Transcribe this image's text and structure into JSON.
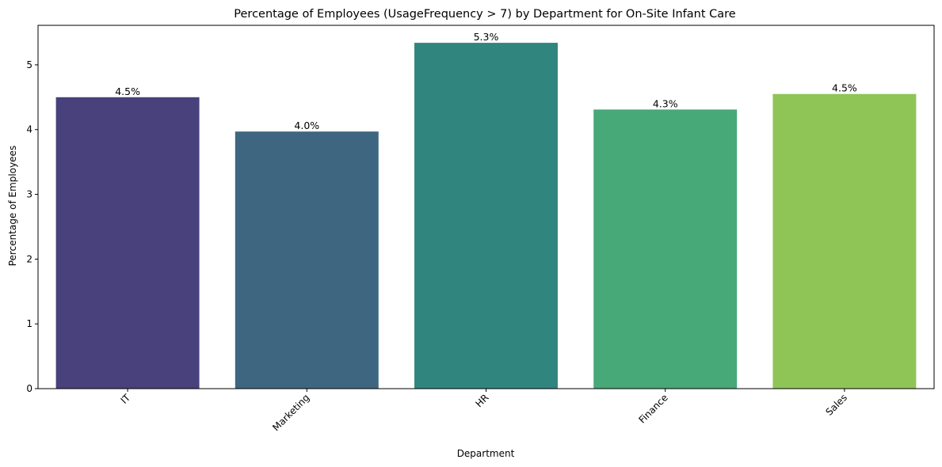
{
  "chart_data": {
    "type": "bar",
    "title": "Percentage of Employees (UsageFrequency > 7) by Department for On-Site Infant Care",
    "xlabel": "Department",
    "ylabel": "Percentage of Employees",
    "categories": [
      "IT",
      "Marketing",
      "HR",
      "Finance",
      "Sales"
    ],
    "values": [
      4.5,
      3.97,
      5.34,
      4.31,
      4.55
    ],
    "data_labels": [
      "4.5%",
      "4.0%",
      "5.3%",
      "4.3%",
      "4.5%"
    ],
    "colors": [
      "#48417b",
      "#3e6681",
      "#30857f",
      "#47a878",
      "#8fc557"
    ],
    "ylim": [
      0,
      5.61
    ],
    "yticks": [
      0,
      1,
      2,
      3,
      4,
      5
    ],
    "grid": false,
    "legend": "none"
  }
}
